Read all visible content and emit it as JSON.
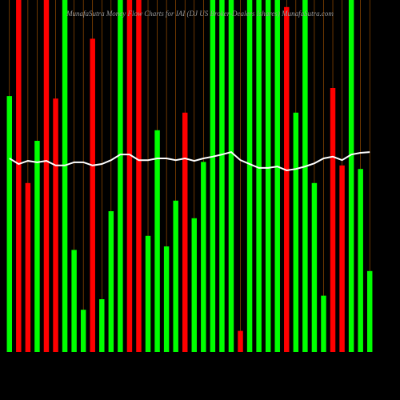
{
  "chart_data": {
    "type": "bar",
    "title": "MunafaSutra  Money Flow  Charts for IAI        (DJ US Broker-Dealers Ishares) MunafaSutra.com",
    "values": [
      72.7,
      100,
      48,
      60,
      100,
      72,
      100,
      29,
      12,
      89,
      15,
      40,
      100,
      100,
      100,
      33,
      63,
      30,
      43,
      68,
      38,
      54,
      100,
      100,
      100,
      6,
      100,
      100,
      100,
      100,
      98,
      68,
      100,
      48,
      16,
      75,
      53,
      100,
      52,
      23
    ],
    "colors": [
      "#00ff00",
      "#ff0000",
      "#ff0000",
      "#00ff00",
      "#ff0000",
      "#ff0000",
      "#00ff00",
      "#00ff00",
      "#00ff00",
      "#ff0000",
      "#00ff00",
      "#00ff00",
      "#00ff00",
      "#ff0000",
      "#ff0000",
      "#00ff00",
      "#00ff00",
      "#00ff00",
      "#00ff00",
      "#ff0000",
      "#00ff00",
      "#00ff00",
      "#00ff00",
      "#00ff00",
      "#00ff00",
      "#ff0000",
      "#00ff00",
      "#00ff00",
      "#00ff00",
      "#00ff00",
      "#ff0000",
      "#00ff00",
      "#00ff00",
      "#00ff00",
      "#00ff00",
      "#ff0000",
      "#ff0000",
      "#00ff00",
      "#00ff00",
      "#00ff00"
    ],
    "line": {
      "color": "#ffffff",
      "values": [
        55,
        53.4,
        54.3,
        53.9,
        54.3,
        53,
        53,
        53.9,
        53.9,
        53,
        53.4,
        54.5,
        56.1,
        56.1,
        54.5,
        54.5,
        55,
        55,
        54.5,
        55,
        54.3,
        55,
        55.5,
        56.1,
        56.8,
        54.5,
        53.4,
        52.3,
        52.3,
        52.7,
        51.6,
        52,
        52.7,
        53.6,
        55,
        55.5,
        54.5,
        56.1,
        56.6,
        56.8
      ]
    },
    "ylim": [
      0,
      100
    ],
    "grid": true,
    "grid_color": "#b35a00"
  }
}
